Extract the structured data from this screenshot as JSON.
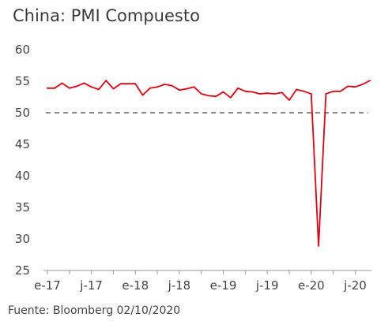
{
  "title": "China: PMI Compuesto",
  "source": "Fuente: Bloomberg 02/10/2020",
  "chart_data": {
    "type": "line",
    "title": "China: PMI Compuesto",
    "xlabel": "",
    "ylabel": "",
    "ylim": [
      25,
      60
    ],
    "yticks": [
      25,
      30,
      35,
      40,
      45,
      50,
      55,
      60
    ],
    "xtick_labels": [
      "e-17",
      "j-17",
      "e-18",
      "j-18",
      "e-19",
      "j-19",
      "e-20",
      "j-20"
    ],
    "reference_line": 50,
    "grid": false,
    "colors": {
      "line": "#e3000f",
      "reference": "#666666"
    },
    "series": [
      {
        "values": [
          53.9,
          53.9,
          54.7,
          53.9,
          54.2,
          54.7,
          54.1,
          53.7,
          55.1,
          53.8,
          54.6,
          54.6,
          54.6,
          52.8,
          53.9,
          54.1,
          54.5,
          54.3,
          53.6,
          53.8,
          54.1,
          53.0,
          52.7,
          52.6,
          53.3,
          52.4,
          53.9,
          53.4,
          53.3,
          53.0,
          53.1,
          53.0,
          53.2,
          52.0,
          53.7,
          53.4,
          53.0,
          28.9,
          53.0,
          53.4,
          53.4,
          54.2,
          54.1,
          54.5,
          55.1
        ]
      }
    ]
  }
}
